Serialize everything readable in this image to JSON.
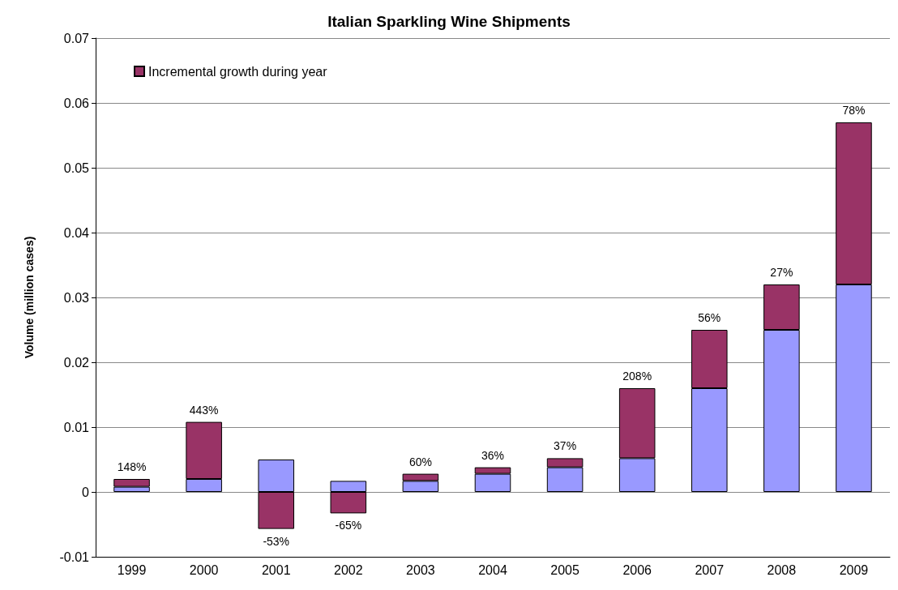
{
  "chart_data": {
    "type": "bar",
    "title": "Italian Sparkling Wine Shipments",
    "ylabel": "Volume (million cases)",
    "categories": [
      "1999",
      "2000",
      "2001",
      "2002",
      "2003",
      "2004",
      "2005",
      "2006",
      "2007",
      "2008",
      "2009"
    ],
    "series": [
      {
        "color": "#9999ff",
        "values": [
          0.0008,
          0.002,
          0.005,
          0.0017,
          0.0017,
          0.0028,
          0.0038,
          0.0052,
          0.016,
          0.025,
          0.032
        ]
      },
      {
        "name": "Incremental growth during year",
        "color": "#993366",
        "values": [
          0.0012,
          0.0088,
          -0.0057,
          -0.0033,
          0.0011,
          0.001,
          0.0014,
          0.0108,
          0.009,
          0.007,
          0.025
        ]
      }
    ],
    "annotations": [
      {
        "text": "148%",
        "x": "1999",
        "y": 0.002
      },
      {
        "text": "443%",
        "x": "2000",
        "y": 0.0108
      },
      {
        "text": "-53%",
        "x": "2001",
        "y": -0.0057
      },
      {
        "text": "-65%",
        "x": "2002",
        "y": -0.0033
      },
      {
        "text": "60%",
        "x": "2003",
        "y": 0.0028
      },
      {
        "text": "36%",
        "x": "2004",
        "y": 0.0038
      },
      {
        "text": "37%",
        "x": "2005",
        "y": 0.0052
      },
      {
        "text": "208%",
        "x": "2006",
        "y": 0.016
      },
      {
        "text": "56%",
        "x": "2007",
        "y": 0.025
      },
      {
        "text": "27%",
        "x": "2008",
        "y": 0.032
      },
      {
        "text": "78%",
        "x": "2009",
        "y": 0.057
      }
    ],
    "stacked": true,
    "ylim": [
      -0.01,
      0.07
    ],
    "yticks": [
      -0.01,
      0,
      0.01,
      0.02,
      0.03,
      0.04,
      0.05,
      0.06,
      0.07
    ],
    "grid": "y",
    "legend": "top left"
  }
}
